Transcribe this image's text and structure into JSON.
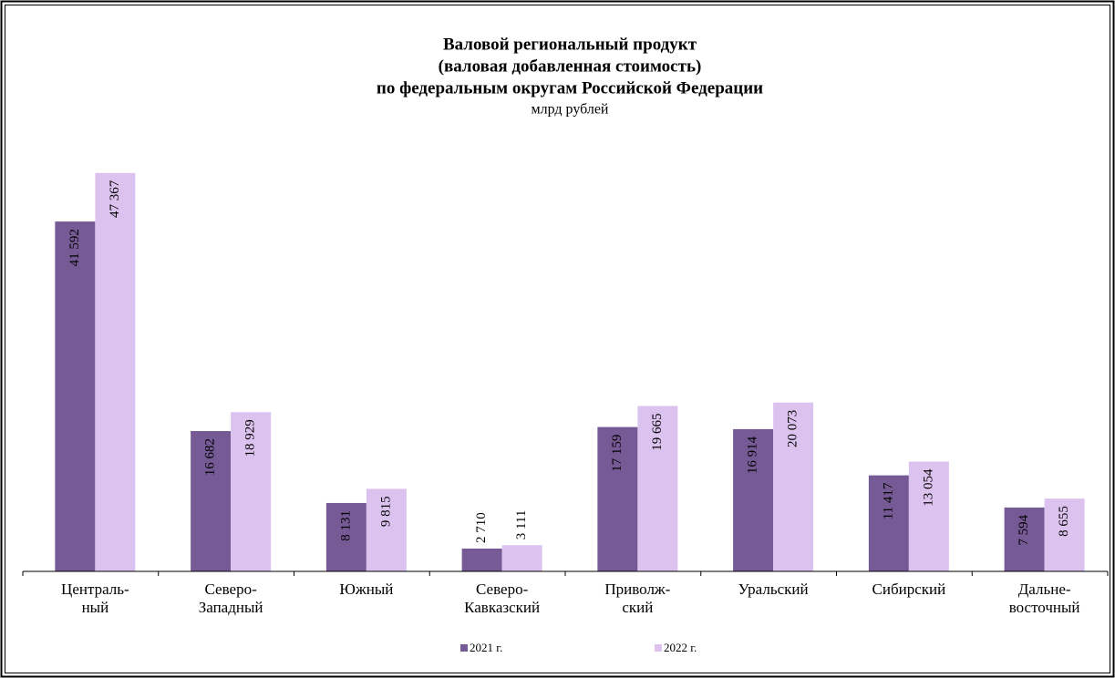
{
  "chart_data": {
    "type": "bar",
    "title": [
      "Валовой региональный продукт",
      "(валовая добавленная стоимость)",
      "по федеральным округам Российской Федерации"
    ],
    "subtitle": "млрд рублей",
    "categories": [
      "Централь-\nный",
      "Северо-\nЗападный",
      "Южный",
      "Северо-\nКавказский",
      "Приволж-\nский",
      "Уральский",
      "Сибирский",
      "Дальне-\nвосточный"
    ],
    "series": [
      {
        "name": "2021 г.",
        "color": "#765a95",
        "values": [
          41592,
          16682,
          8131,
          2710,
          17159,
          16914,
          11417,
          7594
        ],
        "value_labels": [
          "41 592",
          "16 682",
          "8 131",
          "2 710",
          "17 159",
          "16 914",
          "11 417",
          "7 594"
        ]
      },
      {
        "name": "2022 г.",
        "color": "#dcc3ef",
        "values": [
          47367,
          18929,
          9815,
          3111,
          19665,
          20073,
          13054,
          8655
        ],
        "value_labels": [
          "47 367",
          "18 929",
          "9 815",
          "3 111",
          "19 665",
          "20 073",
          "13 054",
          "8 655"
        ]
      }
    ],
    "ylim": [
      0,
      50000
    ]
  }
}
